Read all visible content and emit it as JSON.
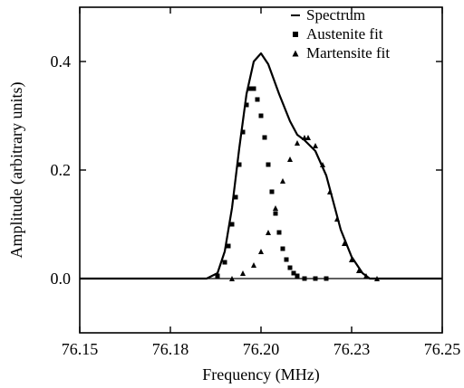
{
  "chart_data": {
    "type": "line",
    "xlabel": "Frequency (MHz)",
    "ylabel": "Amplitude (arbitrary units)",
    "xlim": [
      76.15,
      76.25
    ],
    "ylim": [
      -0.1,
      0.5
    ],
    "xticks": [
      76.15,
      76.175,
      76.2,
      76.225,
      76.25
    ],
    "xtick_labels": [
      "76.15",
      "76.18",
      "76.20",
      "76.23",
      "76.25"
    ],
    "yticks": [
      0.0,
      0.2,
      0.4
    ],
    "ytick_labels": [
      "0.0",
      "0.2",
      "0.4"
    ],
    "legend_position": "top-right",
    "series": [
      {
        "name": "Spectrum",
        "style": "line",
        "x": [
          76.15,
          76.16,
          76.17,
          76.18,
          76.185,
          76.188,
          76.19,
          76.192,
          76.194,
          76.196,
          76.198,
          76.2,
          76.202,
          76.205,
          76.208,
          76.21,
          76.212,
          76.215,
          76.218,
          76.22,
          76.222,
          76.225,
          76.228,
          76.23,
          76.235,
          76.24,
          76.25
        ],
        "y": [
          0.0,
          0.0,
          0.0,
          0.0,
          0.0,
          0.01,
          0.05,
          0.13,
          0.24,
          0.34,
          0.4,
          0.415,
          0.395,
          0.34,
          0.29,
          0.265,
          0.255,
          0.235,
          0.19,
          0.14,
          0.09,
          0.04,
          0.01,
          0.0,
          0.0,
          0.0,
          0.0
        ]
      },
      {
        "name": "Austenite fit",
        "style": "square",
        "x": [
          76.188,
          76.19,
          76.191,
          76.192,
          76.193,
          76.194,
          76.195,
          76.196,
          76.197,
          76.198,
          76.199,
          76.2,
          76.201,
          76.202,
          76.203,
          76.204,
          76.205,
          76.206,
          76.207,
          76.208,
          76.209,
          76.21,
          76.212,
          76.215,
          76.218
        ],
        "y": [
          0.005,
          0.03,
          0.06,
          0.1,
          0.15,
          0.21,
          0.27,
          0.32,
          0.35,
          0.35,
          0.33,
          0.3,
          0.26,
          0.21,
          0.16,
          0.12,
          0.085,
          0.055,
          0.035,
          0.02,
          0.01,
          0.005,
          0.0,
          0.0,
          0.0
        ]
      },
      {
        "name": "Martensite fit",
        "style": "triangle",
        "x": [
          76.192,
          76.195,
          76.198,
          76.2,
          76.202,
          76.204,
          76.206,
          76.208,
          76.21,
          76.212,
          76.213,
          76.215,
          76.217,
          76.219,
          76.221,
          76.223,
          76.225,
          76.227,
          76.229,
          76.232
        ],
        "y": [
          0.0,
          0.01,
          0.025,
          0.05,
          0.085,
          0.13,
          0.18,
          0.22,
          0.25,
          0.26,
          0.26,
          0.245,
          0.21,
          0.16,
          0.11,
          0.065,
          0.035,
          0.015,
          0.005,
          0.0
        ]
      }
    ]
  }
}
